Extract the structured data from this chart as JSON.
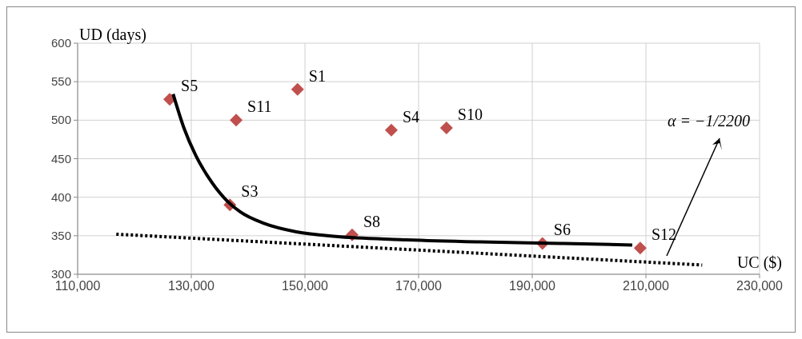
{
  "chart_data": {
    "type": "scatter",
    "xlabel": "UC ($)",
    "ylabel": "UD (days)",
    "xlim": [
      110000,
      230000
    ],
    "xticks": [
      {
        "value": 110000,
        "label": "110,000"
      },
      {
        "value": 130000,
        "label": "130,000"
      },
      {
        "value": 150000,
        "label": "150,000"
      },
      {
        "value": 170000,
        "label": "170,000"
      },
      {
        "value": 190000,
        "label": "190,000"
      },
      {
        "value": 210000,
        "label": "210,000"
      },
      {
        "value": 230000,
        "label": "230,000"
      }
    ],
    "ylim": [
      300,
      600
    ],
    "yticks": [
      300,
      350,
      400,
      450,
      500,
      550,
      600
    ],
    "grid": true,
    "series": [
      {
        "color": "#c0504d",
        "marker": "diamond",
        "x": [
          126200,
          137900,
          148700,
          165200,
          174900,
          136800,
          158300,
          191800,
          209000
        ],
        "values": [
          527,
          500,
          540,
          487,
          490,
          390,
          351,
          340,
          334
        ]
      },
      {
        "type": "line",
        "color": "#000000",
        "marker": "none",
        "line_style": "solid",
        "x": [
          126800,
          128700,
          130800,
          133000,
          135800,
          138600,
          142800,
          148500,
          155500,
          166800,
          180800,
          194900,
          207600
        ],
        "values": [
          534,
          490,
          454,
          426,
          399,
          381,
          366,
          355,
          349,
          345,
          342,
          340,
          338
        ]
      },
      {
        "type": "line",
        "color": "#000000",
        "marker": "none",
        "line_style": "dotted",
        "x": [
          116800,
          219900
        ],
        "values": [
          352,
          312
        ]
      }
    ],
    "annotations": [
      {
        "text": "S5",
        "x": 126200,
        "y": 527
      },
      {
        "text": "S11",
        "x": 137900,
        "y": 500
      },
      {
        "text": "S1",
        "x": 148700,
        "y": 540
      },
      {
        "text": "S4",
        "x": 165200,
        "y": 487
      },
      {
        "text": "S10",
        "x": 174900,
        "y": 490
      },
      {
        "text": "S3",
        "x": 136800,
        "y": 390
      },
      {
        "text": "S8",
        "x": 158300,
        "y": 351
      },
      {
        "text": "S6",
        "x": 191800,
        "y": 340
      },
      {
        "text": "S12",
        "x": 209000,
        "y": 334
      },
      "α = −1/2200"
    ]
  }
}
